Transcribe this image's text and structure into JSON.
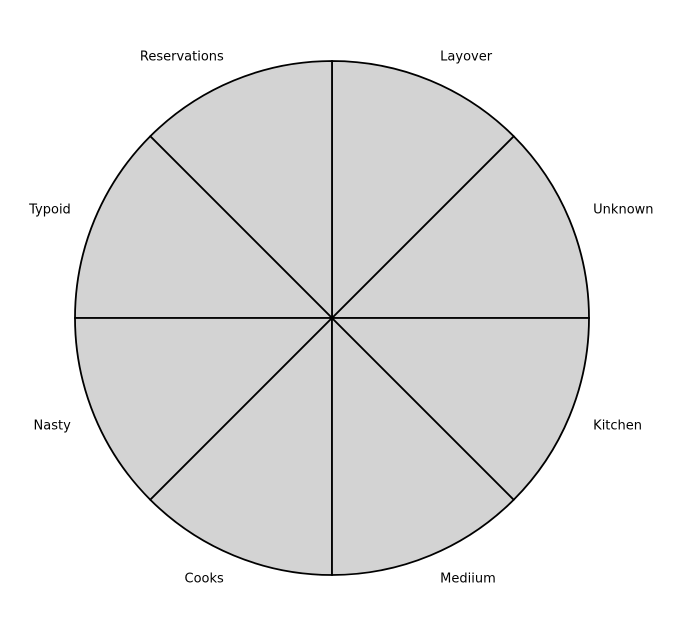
{
  "chart_data": {
    "type": "pie",
    "title": "",
    "categories": [
      "Unknown",
      "Layover",
      "Reservations",
      "Typoid",
      "Nasty",
      "Cooks",
      "Mediium",
      "Kitchen"
    ],
    "values": [
      1,
      1,
      1,
      1,
      1,
      1,
      1,
      1
    ],
    "start_angle_deg": 0,
    "direction": "counterclockwise",
    "slice_color": "#d3d3d3",
    "edge_color": "#000000",
    "legend": "none",
    "grid": false
  }
}
